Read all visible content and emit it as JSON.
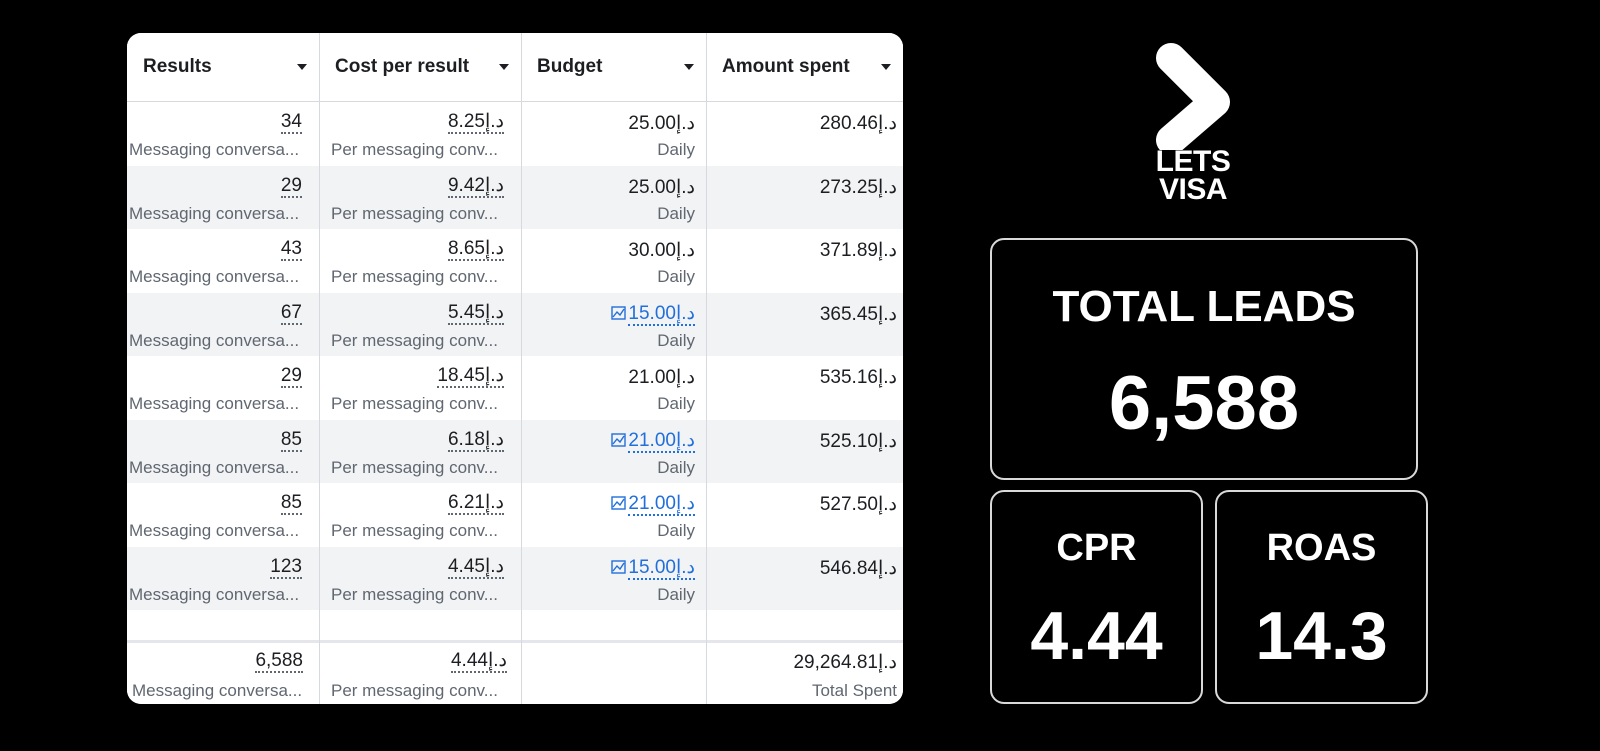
{
  "table": {
    "columns": [
      {
        "label": "Results"
      },
      {
        "label": "Cost per result"
      },
      {
        "label": "Budget"
      },
      {
        "label": "Amount spent"
      }
    ],
    "rows": [
      {
        "results": "34",
        "results_sub": "Messaging conversa...",
        "cpr": "8.25د.إ",
        "cpr_sub": "Per messaging conv...",
        "budget": "25.00د.إ",
        "budget_sub": "Daily",
        "budget_link": false,
        "spent": "280.46د.إ"
      },
      {
        "results": "29",
        "results_sub": "Messaging conversa...",
        "cpr": "9.42د.إ",
        "cpr_sub": "Per messaging conv...",
        "budget": "25.00د.إ",
        "budget_sub": "Daily",
        "budget_link": false,
        "spent": "273.25د.إ"
      },
      {
        "results": "43",
        "results_sub": "Messaging conversa...",
        "cpr": "8.65د.إ",
        "cpr_sub": "Per messaging conv...",
        "budget": "30.00د.إ",
        "budget_sub": "Daily",
        "budget_link": false,
        "spent": "371.89د.إ"
      },
      {
        "results": "67",
        "results_sub": "Messaging conversa...",
        "cpr": "5.45د.إ",
        "cpr_sub": "Per messaging conv...",
        "budget": "15.00د.إ",
        "budget_sub": "Daily",
        "budget_link": true,
        "spent": "365.45د.إ"
      },
      {
        "results": "29",
        "results_sub": "Messaging conversa...",
        "cpr": "18.45د.إ",
        "cpr_sub": "Per messaging conv...",
        "budget": "21.00د.إ",
        "budget_sub": "Daily",
        "budget_link": false,
        "spent": "535.16د.إ"
      },
      {
        "results": "85",
        "results_sub": "Messaging conversa...",
        "cpr": "6.18د.إ",
        "cpr_sub": "Per messaging conv...",
        "budget": "21.00د.إ",
        "budget_sub": "Daily",
        "budget_link": true,
        "spent": "525.10د.إ"
      },
      {
        "results": "85",
        "results_sub": "Messaging conversa...",
        "cpr": "6.21د.إ",
        "cpr_sub": "Per messaging conv...",
        "budget": "21.00د.إ",
        "budget_sub": "Daily",
        "budget_link": true,
        "spent": "527.50د.إ"
      },
      {
        "results": "123",
        "results_sub": "Messaging conversa...",
        "cpr": "4.45د.إ",
        "cpr_sub": "Per messaging conv...",
        "budget": "15.00د.إ",
        "budget_sub": "Daily",
        "budget_link": true,
        "spent": "546.84د.إ"
      }
    ],
    "totals": {
      "results": "6,588",
      "results_sub": "Messaging conversa...",
      "cpr": "4.44د.إ",
      "cpr_sub": "Per messaging conv...",
      "spent": "29,264.81د.إ",
      "spent_sub": "Total Spent"
    }
  },
  "brand": {
    "line1": "LETS",
    "line2": "VISA"
  },
  "stats": {
    "total_leads_label": "TOTAL LEADS",
    "total_leads_value": "6,588",
    "cpr_label": "CPR",
    "cpr_value": "4.44",
    "roas_label": "ROAS",
    "roas_value": "14.3"
  },
  "icons": {
    "sort": "caret-down-icon",
    "budget_chart": "line-chart-icon",
    "brand": "chevron-right-icon"
  }
}
